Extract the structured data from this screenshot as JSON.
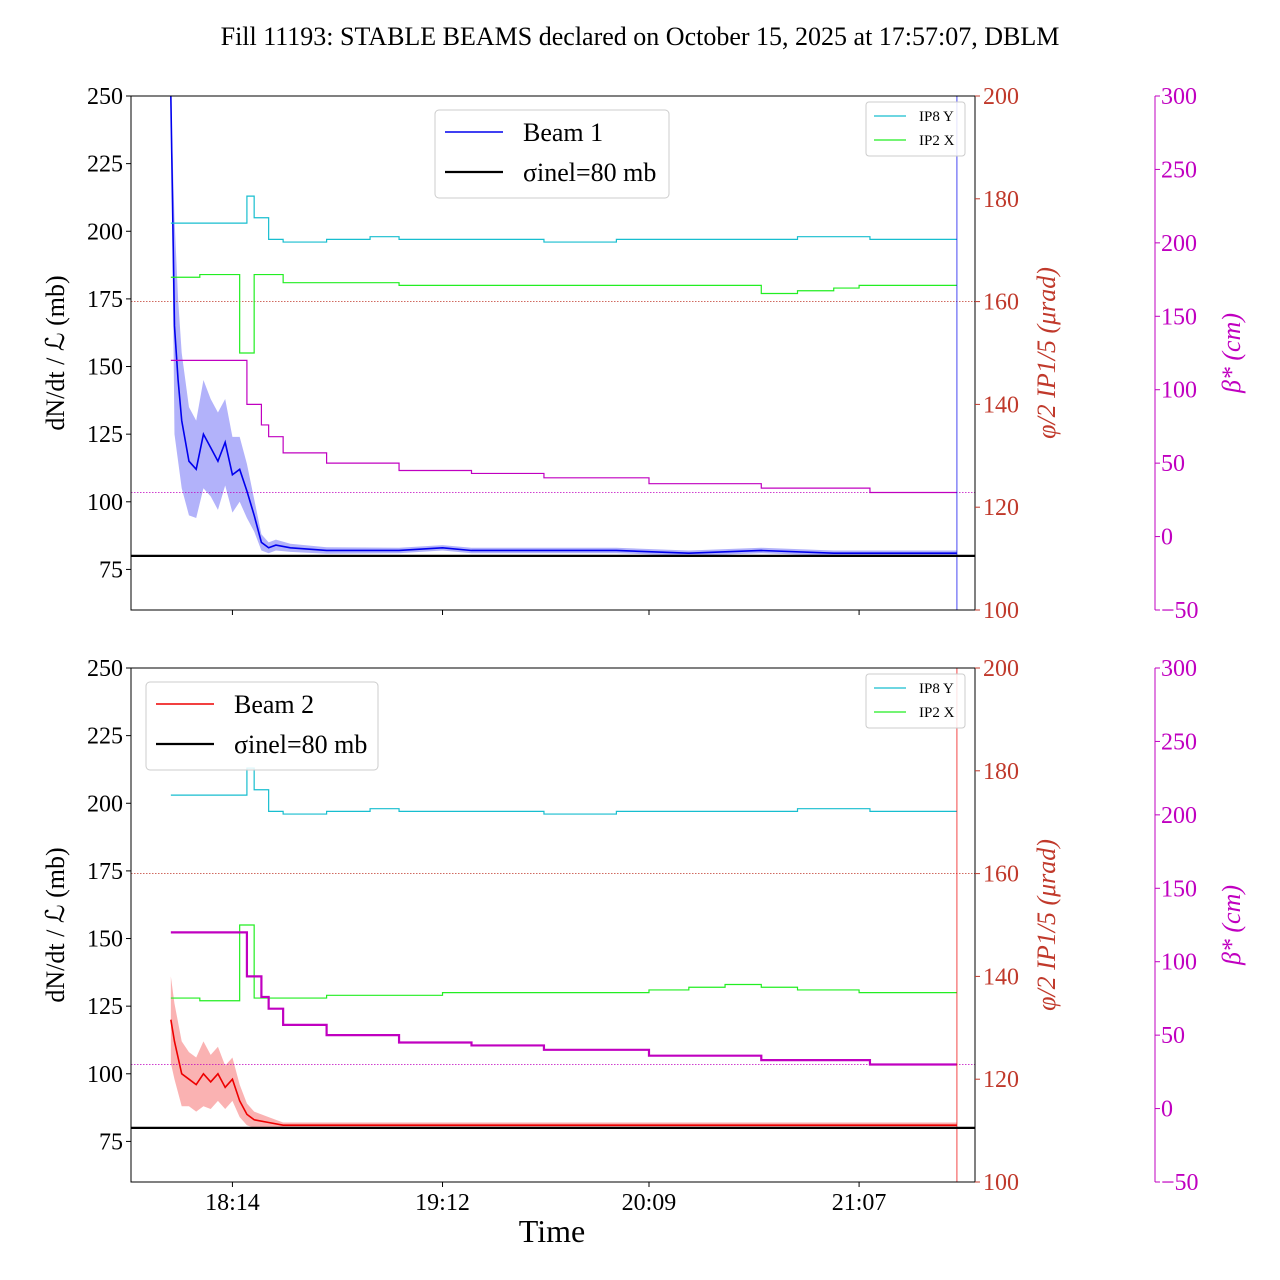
{
  "title": "Fill 11193: STABLE BEAMS declared on October 15, 2025 at 17:57:07, DBLM",
  "colors": {
    "beam1": "#0000ee",
    "beam2": "#ee0000",
    "ip8y": "#17becf",
    "ip2x": "#22ee22",
    "phi": "#c0392b",
    "beta": "#c000c0",
    "sigma": "#000000"
  },
  "chart_data": [
    {
      "type": "line",
      "panel": "top",
      "xlabel": "",
      "x_ticks": [
        "18:14",
        "19:12",
        "20:09",
        "21:07"
      ],
      "xlim": [
        "17:46",
        "21:39"
      ],
      "ylabel_left": "dN/dt / ℒ (mb)",
      "ylim_left": [
        60,
        250
      ],
      "yticks_left": [
        75,
        100,
        125,
        150,
        175,
        200,
        225,
        250
      ],
      "ylabel_right1": "φ/2 IP1/5 (μrad)",
      "ylim_right1": [
        100,
        200
      ],
      "yticks_right1": [
        100,
        120,
        140,
        160,
        180,
        200
      ],
      "ylabel_right2": "β* (cm)",
      "ylim_right2": [
        -50,
        300
      ],
      "yticks_right2": [
        -50,
        0,
        50,
        100,
        150,
        200,
        250,
        300
      ],
      "legend_main": [
        {
          "label": "Beam 1",
          "color": "#0000ee"
        },
        {
          "label": "σinel=80 mb",
          "color": "#000000"
        }
      ],
      "legend_main_position": "top-center",
      "legend_small": [
        {
          "label": "IP8 Y",
          "color": "#17becf"
        },
        {
          "label": "IP2 X",
          "color": "#22ee22"
        }
      ],
      "legend_small_position": "top-right",
      "sigma_inel_mb": 80,
      "phi_reference_urad": 160,
      "beta_reference_cm": 30,
      "series": [
        {
          "name": "Beam 1",
          "x": [
            "17:57",
            "17:58",
            "17:59",
            "18:00",
            "18:02",
            "18:04",
            "18:06",
            "18:08",
            "18:10",
            "18:12",
            "18:14",
            "18:16",
            "18:18",
            "18:20",
            "18:22",
            "18:24",
            "18:26",
            "18:30",
            "18:40",
            "19:00",
            "19:12",
            "19:20",
            "19:40",
            "20:00",
            "20:20",
            "20:40",
            "21:00",
            "21:20",
            "21:34"
          ],
          "values": [
            250,
            165,
            145,
            130,
            115,
            112,
            125,
            120,
            115,
            122,
            110,
            112,
            104,
            95,
            85,
            83,
            84,
            83,
            82,
            82,
            83,
            82,
            82,
            82,
            81,
            82,
            81,
            81,
            81
          ],
          "band_halfwidth": [
            0,
            40,
            30,
            25,
            20,
            18,
            20,
            18,
            18,
            16,
            14,
            12,
            10,
            6,
            3,
            2,
            2,
            1.5,
            1.2,
            1,
            1,
            1,
            1,
            1,
            1,
            1,
            1,
            1,
            1
          ]
        },
        {
          "name": "IP8 Y",
          "axis": "left",
          "x": [
            "17:57",
            "18:14",
            "18:18",
            "18:20",
            "18:24",
            "18:28",
            "18:40",
            "18:48",
            "18:52",
            "19:00",
            "19:12",
            "19:30",
            "19:40",
            "20:00",
            "20:09",
            "20:20",
            "20:40",
            "20:50",
            "21:00",
            "21:07",
            "21:10",
            "21:34"
          ],
          "values": [
            203,
            203,
            213,
            205,
            197,
            196,
            197,
            197,
            198,
            197,
            197,
            197,
            196,
            197,
            197,
            197,
            197,
            198,
            198,
            198,
            197,
            197
          ]
        },
        {
          "name": "IP2 X",
          "axis": "left",
          "x": [
            "17:57",
            "18:05",
            "18:14",
            "18:16",
            "18:20",
            "18:28",
            "18:40",
            "19:00",
            "19:12",
            "19:30",
            "19:40",
            "20:00",
            "20:09",
            "20:20",
            "20:40",
            "20:50",
            "21:00",
            "21:07",
            "21:10",
            "21:34"
          ],
          "values": [
            183,
            184,
            184,
            155,
            184,
            181,
            181,
            180,
            180,
            180,
            180,
            180,
            180,
            180,
            177,
            178,
            179,
            180,
            180,
            180
          ]
        },
        {
          "name": "β*",
          "axis": "right2",
          "x": [
            "17:57",
            "18:14",
            "18:18",
            "18:22",
            "18:24",
            "18:28",
            "18:40",
            "19:00",
            "19:20",
            "19:40",
            "20:09",
            "20:20",
            "20:40",
            "21:00",
            "21:10",
            "21:34"
          ],
          "values": [
            120,
            120,
            90,
            76,
            68,
            57,
            50,
            45,
            43,
            40,
            36,
            36,
            33,
            33,
            30,
            30
          ]
        }
      ]
    },
    {
      "type": "line",
      "panel": "bottom",
      "xlabel": "Time",
      "x_ticks": [
        "18:14",
        "19:12",
        "20:09",
        "21:07"
      ],
      "xlim": [
        "17:46",
        "21:39"
      ],
      "ylabel_left": "dN/dt / ℒ (mb)",
      "ylim_left": [
        60,
        250
      ],
      "yticks_left": [
        75,
        100,
        125,
        150,
        175,
        200,
        225,
        250
      ],
      "ylabel_right1": "φ/2 IP1/5 (μrad)",
      "ylim_right1": [
        100,
        200
      ],
      "yticks_right1": [
        100,
        120,
        140,
        160,
        180,
        200
      ],
      "ylabel_right2": "β* (cm)",
      "ylim_right2": [
        -50,
        300
      ],
      "yticks_right2": [
        -50,
        0,
        50,
        100,
        150,
        200,
        250,
        300
      ],
      "legend_main": [
        {
          "label": "Beam 2",
          "color": "#ee0000"
        },
        {
          "label": "σinel=80 mb",
          "color": "#000000"
        }
      ],
      "legend_main_position": "top-left",
      "legend_small": [
        {
          "label": "IP8 Y",
          "color": "#17becf"
        },
        {
          "label": "IP2 X",
          "color": "#22ee22"
        }
      ],
      "legend_small_position": "top-right",
      "sigma_inel_mb": 80,
      "phi_reference_urad": 160,
      "beta_reference_cm": 30,
      "series": [
        {
          "name": "Beam 2",
          "x": [
            "17:57",
            "17:58",
            "18:00",
            "18:02",
            "18:04",
            "18:06",
            "18:08",
            "18:10",
            "18:12",
            "18:14",
            "18:16",
            "18:18",
            "18:20",
            "18:24",
            "18:28",
            "18:40",
            "19:00",
            "19:20",
            "19:40",
            "20:00",
            "20:20",
            "20:40",
            "21:00",
            "21:20",
            "21:34"
          ],
          "values": [
            120,
            112,
            100,
            98,
            96,
            100,
            97,
            100,
            95,
            98,
            90,
            85,
            83,
            82,
            81,
            81,
            81,
            81,
            81,
            81,
            81,
            81,
            81,
            81,
            81
          ],
          "band_halfwidth": [
            16,
            14,
            12,
            10,
            10,
            12,
            10,
            10,
            8,
            8,
            6,
            4,
            3,
            2,
            1,
            1,
            1,
            1,
            1,
            1,
            1,
            1,
            1,
            1,
            1
          ]
        },
        {
          "name": "IP8 Y",
          "axis": "left",
          "x": [
            "17:57",
            "18:14",
            "18:18",
            "18:20",
            "18:24",
            "18:28",
            "18:40",
            "18:48",
            "18:52",
            "19:00",
            "19:12",
            "19:30",
            "19:40",
            "20:00",
            "20:09",
            "20:20",
            "20:40",
            "20:50",
            "21:00",
            "21:07",
            "21:10",
            "21:34"
          ],
          "values": [
            203,
            203,
            213,
            205,
            197,
            196,
            197,
            197,
            198,
            197,
            197,
            197,
            196,
            197,
            197,
            197,
            197,
            198,
            198,
            198,
            197,
            197
          ]
        },
        {
          "name": "IP2 X",
          "axis": "left",
          "x": [
            "17:57",
            "18:05",
            "18:14",
            "18:16",
            "18:20",
            "18:28",
            "18:40",
            "19:00",
            "19:12",
            "19:30",
            "19:40",
            "20:00",
            "20:09",
            "20:20",
            "20:30",
            "20:40",
            "20:50",
            "21:00",
            "21:07",
            "21:10",
            "21:34"
          ],
          "values": [
            128,
            127,
            127,
            155,
            128,
            128,
            129,
            129,
            130,
            130,
            130,
            130,
            131,
            132,
            133,
            132,
            131,
            131,
            130,
            130,
            130
          ]
        },
        {
          "name": "β*",
          "axis": "right2",
          "x": [
            "17:57",
            "18:14",
            "18:18",
            "18:22",
            "18:24",
            "18:28",
            "18:40",
            "19:00",
            "19:20",
            "19:40",
            "20:09",
            "20:20",
            "20:40",
            "21:00",
            "21:10",
            "21:34"
          ],
          "values": [
            120,
            120,
            90,
            76,
            68,
            57,
            50,
            45,
            43,
            40,
            36,
            36,
            33,
            33,
            30,
            30
          ]
        }
      ]
    }
  ]
}
